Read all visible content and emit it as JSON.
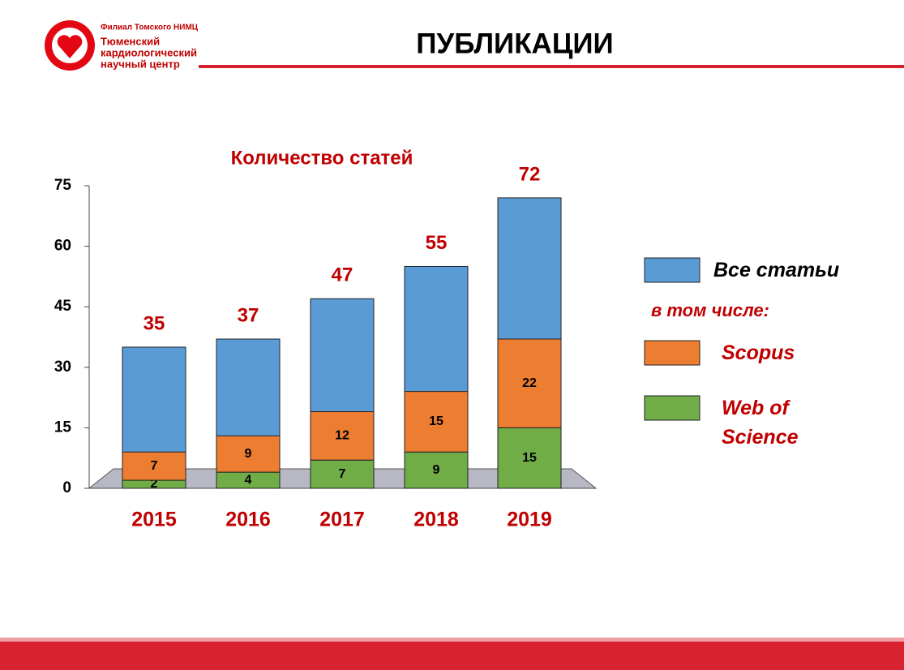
{
  "header": {
    "org_lines": [
      "Филиал Томского НИМЦ",
      "Тюменский",
      "кардиологический",
      "научный центр"
    ],
    "title": "ПУБЛИКАЦИИ"
  },
  "chart_data": {
    "type": "bar",
    "title": "Количество статей",
    "categories": [
      "2015",
      "2016",
      "2017",
      "2018",
      "2019"
    ],
    "series": [
      {
        "name": "Все статьи",
        "color": "#5b9bd5",
        "values": [
          35,
          37,
          47,
          55,
          72
        ]
      },
      {
        "name": "Scopus",
        "color": "#ed7d31",
        "values": [
          7,
          9,
          12,
          15,
          22
        ]
      },
      {
        "name": "Web of Science",
        "color": "#70ad47",
        "values": [
          2,
          4,
          7,
          9,
          15
        ]
      }
    ],
    "legend_note": "в том числе:",
    "legend": "right",
    "ylim": [
      0,
      75
    ],
    "yticks": [
      0,
      15,
      30,
      45,
      60,
      75
    ]
  }
}
